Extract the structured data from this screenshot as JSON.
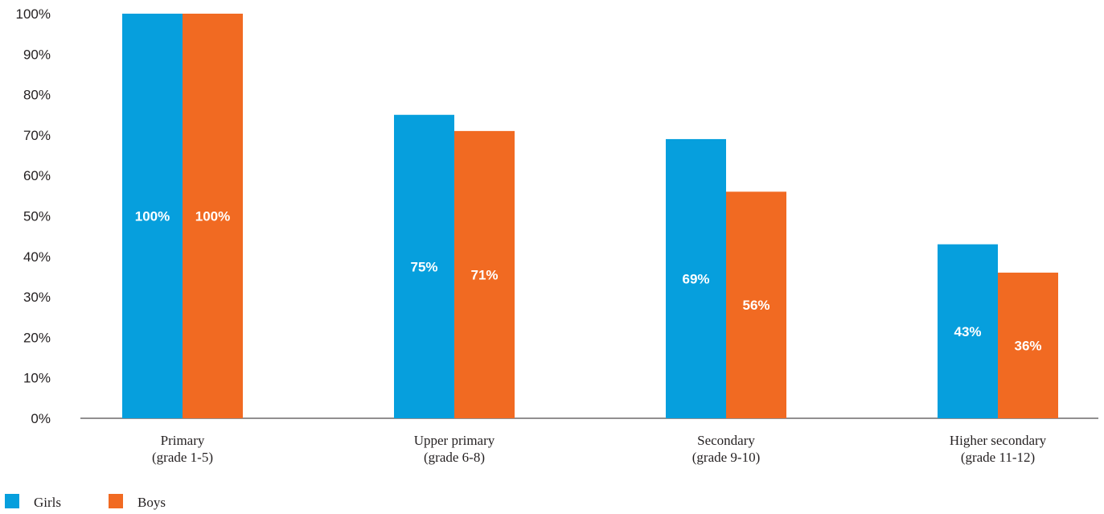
{
  "chart_data": {
    "type": "bar",
    "categories": [
      [
        "Primary",
        "(grade 1-5)"
      ],
      [
        "Upper primary",
        "(grade 6-8)"
      ],
      [
        "Secondary",
        "(grade 9-10)"
      ],
      [
        "Higher secondary",
        "(grade 11-12)"
      ]
    ],
    "series": [
      {
        "name": "Girls",
        "values": [
          100,
          75,
          69,
          43
        ],
        "labels": [
          "100%",
          "75%",
          "69%",
          "43%"
        ],
        "color": "#069fdd"
      },
      {
        "name": "Boys",
        "values": [
          100,
          71,
          56,
          36
        ],
        "labels": [
          "100%",
          "71%",
          "56%",
          "36%"
        ],
        "color": "#f16a22"
      }
    ],
    "yticks": [
      "0%",
      "10%",
      "20%",
      "30%",
      "40%",
      "50%",
      "60%",
      "70%",
      "80%",
      "90%",
      "100%"
    ],
    "ylim": [
      0,
      100
    ],
    "grid": false,
    "legend_position": "bottom-left"
  }
}
